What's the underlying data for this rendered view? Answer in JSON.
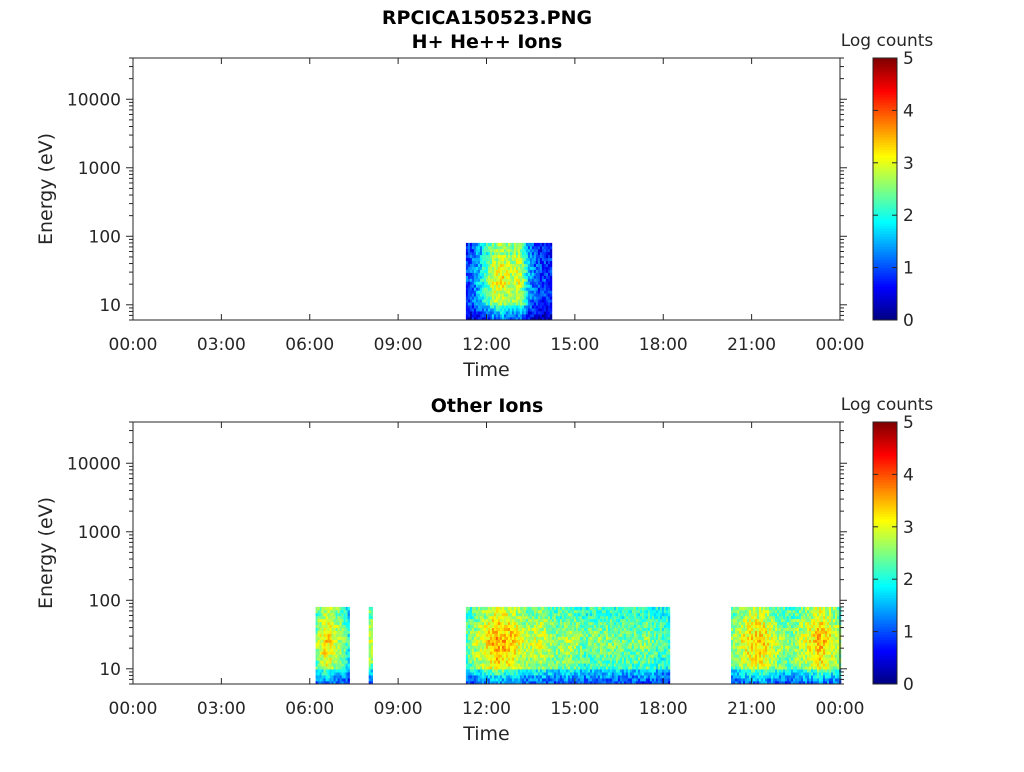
{
  "figure": {
    "title": "RPCICA150523.PNG"
  },
  "chart_data": [
    {
      "type": "heatmap",
      "title": "H+ He++ Ions",
      "xlabel": "Time",
      "ylabel": "Energy (eV)",
      "x_tick_labels": [
        "00:00",
        "03:00",
        "06:00",
        "09:00",
        "12:00",
        "15:00",
        "18:00",
        "21:00",
        "00:00"
      ],
      "x_range_hours": [
        0,
        24
      ],
      "y_scale": "log",
      "y_tick_labels": [
        "10",
        "100",
        "1000",
        "10000"
      ],
      "y_tick_values": [
        10,
        100,
        1000,
        10000
      ],
      "y_range": [
        6,
        40000
      ],
      "colorbar": {
        "label": "Log counts",
        "ticks": [
          "0",
          "1",
          "2",
          "3",
          "4",
          "5"
        ],
        "range": [
          0,
          5
        ],
        "colormap": "jet"
      },
      "data_blocks": [
        {
          "start_hour": 11.3,
          "end_hour": 14.2,
          "energy_min": 6,
          "energy_max": 80,
          "profile_hours": [
            11.3,
            11.6,
            11.9,
            12.2,
            12.5,
            12.8,
            13.1,
            13.4,
            13.7,
            14.0,
            14.2
          ],
          "peak_log_counts": [
            1.0,
            1.4,
            2.2,
            3.0,
            3.2,
            2.8,
            3.1,
            1.6,
            1.0,
            0.9,
            0.8
          ]
        }
      ]
    },
    {
      "type": "heatmap",
      "title": "Other Ions",
      "xlabel": "Time",
      "ylabel": "Energy (eV)",
      "x_tick_labels": [
        "00:00",
        "03:00",
        "06:00",
        "09:00",
        "12:00",
        "15:00",
        "18:00",
        "21:00",
        "00:00"
      ],
      "x_range_hours": [
        0,
        24
      ],
      "y_scale": "log",
      "y_tick_labels": [
        "10",
        "100",
        "1000",
        "10000"
      ],
      "y_tick_values": [
        10,
        100,
        1000,
        10000
      ],
      "y_range": [
        6,
        40000
      ],
      "colorbar": {
        "label": "Log counts",
        "ticks": [
          "0",
          "1",
          "2",
          "3",
          "4",
          "5"
        ],
        "range": [
          0,
          5
        ],
        "colormap": "jet"
      },
      "data_blocks": [
        {
          "start_hour": 6.2,
          "end_hour": 7.3,
          "energy_min": 6,
          "energy_max": 80,
          "profile_hours": [
            6.2,
            6.5,
            6.8,
            7.1,
            7.3
          ],
          "peak_log_counts": [
            2.6,
            3.4,
            3.0,
            2.6,
            2.0
          ]
        },
        {
          "start_hour": 8.0,
          "end_hour": 8.1,
          "energy_min": 6,
          "energy_max": 80,
          "profile_hours": [
            8.0,
            8.1
          ],
          "peak_log_counts": [
            2.8,
            2.6
          ]
        },
        {
          "start_hour": 11.3,
          "end_hour": 18.2,
          "energy_min": 6,
          "energy_max": 80,
          "profile_hours": [
            11.3,
            11.8,
            12.3,
            12.8,
            13.3,
            13.8,
            14.3,
            14.8,
            15.3,
            15.8,
            16.3,
            16.8,
            17.3,
            17.8,
            18.2
          ],
          "peak_log_counts": [
            2.4,
            3.0,
            3.6,
            3.4,
            2.8,
            3.0,
            2.6,
            2.8,
            2.4,
            2.6,
            2.5,
            2.4,
            2.6,
            2.3,
            2.2
          ]
        },
        {
          "start_hour": 20.3,
          "end_hour": 24.0,
          "energy_min": 6,
          "energy_max": 80,
          "profile_hours": [
            20.3,
            20.8,
            21.3,
            21.8,
            22.3,
            22.8,
            23.3,
            23.8,
            24.0
          ],
          "peak_log_counts": [
            2.6,
            3.2,
            3.4,
            2.8,
            2.6,
            3.0,
            3.5,
            3.0,
            2.6
          ]
        }
      ]
    }
  ]
}
